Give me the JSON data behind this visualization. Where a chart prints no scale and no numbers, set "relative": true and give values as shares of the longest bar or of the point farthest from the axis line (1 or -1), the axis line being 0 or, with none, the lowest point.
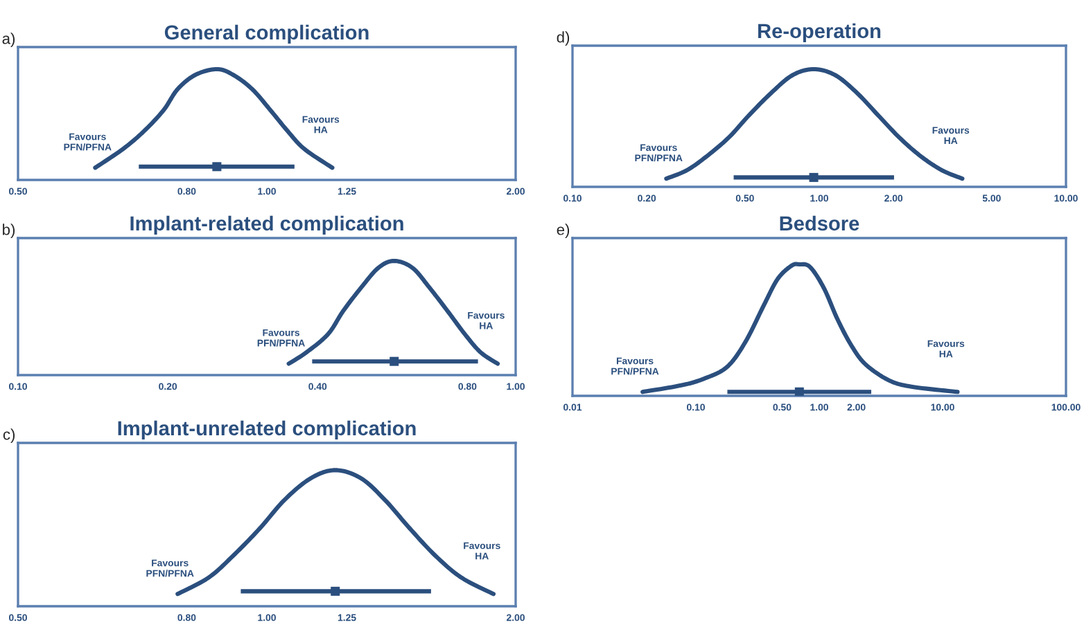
{
  "chart_data": [
    {
      "type": "line",
      "title": "General complication",
      "log": "x",
      "relative": true,
      "xlim": [
        0.5,
        2.0
      ],
      "xticks": [
        {
          "value": 0.5,
          "label": "0.50"
        },
        {
          "value": 0.8,
          "label": "0.80"
        },
        {
          "value": 1.0,
          "label": "1.00"
        },
        {
          "value": 1.25,
          "label": "1.25"
        },
        {
          "value": 2.0,
          "label": "2.00"
        }
      ],
      "annotations": [
        "a)",
        "Favours\nPFN/PFNA",
        "Favours\nHA"
      ],
      "series": [
        {
          "color": "#2b4f7e",
          "x": [
            0.62,
            0.67,
            0.71,
            0.75,
            0.78,
            0.82,
            0.87,
            0.91,
            0.96,
            1.01,
            1.06,
            1.11,
            1.2
          ],
          "values": [
            0.11,
            0.28,
            0.44,
            0.63,
            0.82,
            0.95,
            1,
            0.95,
            0.82,
            0.63,
            0.44,
            0.28,
            0.11
          ]
        },
        {
          "type": "scatter",
          "marker": "square",
          "color": "#2b4f7e",
          "x": [
            0.87
          ],
          "values": [
            0.12
          ],
          "xerrors": [
            [
              0.7,
              1.08
            ]
          ]
        }
      ]
    },
    {
      "type": "line",
      "title": "Implant-related complication",
      "log": "x",
      "relative": true,
      "xlim": [
        0.1,
        1.0
      ],
      "xticks": [
        {
          "value": 0.1,
          "label": "0.10"
        },
        {
          "value": 0.2,
          "label": "0.20"
        },
        {
          "value": 0.4,
          "label": "0.40"
        },
        {
          "value": 0.8,
          "label": "0.80"
        },
        {
          "value": 1.0,
          "label": "1.00"
        }
      ],
      "annotations": [
        "b)",
        "Favours\nPFN/PFNA",
        "Favours\nHA"
      ],
      "series": [
        {
          "color": "#2b4f7e",
          "x": [
            0.35,
            0.38,
            0.42,
            0.45,
            0.49,
            0.53,
            0.57,
            0.62,
            0.67,
            0.73,
            0.79,
            0.85,
            0.92
          ],
          "values": [
            0.1,
            0.2,
            0.36,
            0.56,
            0.77,
            0.94,
            1,
            0.94,
            0.77,
            0.56,
            0.36,
            0.2,
            0.1
          ]
        },
        {
          "type": "scatter",
          "marker": "square",
          "color": "#2b4f7e",
          "x": [
            0.57
          ],
          "values": [
            0.12
          ],
          "xerrors": [
            [
              0.39,
              0.84
            ]
          ]
        }
      ]
    },
    {
      "type": "line",
      "title": "Implant-unrelated complication",
      "log": "x",
      "relative": true,
      "xlim": [
        0.5,
        2.0
      ],
      "xticks": [
        {
          "value": 0.5,
          "label": "0.50"
        },
        {
          "value": 0.8,
          "label": "0.80"
        },
        {
          "value": 1.0,
          "label": "1.00"
        },
        {
          "value": 1.25,
          "label": "1.25"
        },
        {
          "value": 2.0,
          "label": "2.00"
        }
      ],
      "annotations": [
        "c)",
        "Favours\nPFN/PFNA",
        "Favours\nHA"
      ],
      "series": [
        {
          "color": "#2b4f7e",
          "x": [
            0.78,
            0.85,
            0.91,
            0.98,
            1.05,
            1.13,
            1.21,
            1.3,
            1.39,
            1.49,
            1.6,
            1.72,
            1.88
          ],
          "values": [
            0.09,
            0.21,
            0.37,
            0.57,
            0.78,
            0.94,
            1,
            0.94,
            0.78,
            0.57,
            0.37,
            0.21,
            0.09
          ]
        },
        {
          "type": "scatter",
          "marker": "square",
          "color": "#2b4f7e",
          "x": [
            1.21
          ],
          "values": [
            0.11
          ],
          "xerrors": [
            [
              0.93,
              1.58
            ]
          ]
        }
      ]
    },
    {
      "type": "line",
      "title": "Re-operation",
      "log": "x",
      "relative": true,
      "xlim": [
        0.1,
        10.0
      ],
      "xticks": [
        {
          "value": 0.1,
          "label": "0.10"
        },
        {
          "value": 0.2,
          "label": "0.20"
        },
        {
          "value": 0.5,
          "label": "0.50"
        },
        {
          "value": 1.0,
          "label": "1.00"
        },
        {
          "value": 2.0,
          "label": "2.00"
        },
        {
          "value": 5.0,
          "label": "5.00"
        },
        {
          "value": 10.0,
          "label": "10.00"
        }
      ],
      "annotations": [
        "d)",
        "Favours\nPFN/PFNA",
        "Favours\nHA"
      ],
      "series": [
        {
          "color": "#2b4f7e",
          "x": [
            0.24,
            0.29,
            0.35,
            0.43,
            0.52,
            0.64,
            0.78,
            0.95,
            1.16,
            1.42,
            1.73,
            2.11,
            2.58,
            3.15,
            3.8
          ],
          "values": [
            0.07,
            0.14,
            0.26,
            0.42,
            0.61,
            0.8,
            0.95,
            1,
            0.95,
            0.8,
            0.61,
            0.42,
            0.26,
            0.14,
            0.07
          ]
        },
        {
          "type": "scatter",
          "marker": "square",
          "color": "#2b4f7e",
          "x": [
            0.95
          ],
          "values": [
            0.08
          ],
          "xerrors": [
            [
              0.45,
              2.01
            ]
          ]
        }
      ]
    },
    {
      "type": "line",
      "title": "Bedsore",
      "log": "x",
      "relative": true,
      "xlim": [
        0.01,
        100.0
      ],
      "xticks": [
        {
          "value": 0.01,
          "label": "0.01"
        },
        {
          "value": 0.1,
          "label": "0.10"
        },
        {
          "value": 0.5,
          "label": "0.50"
        },
        {
          "value": 1.0,
          "label": "1.00"
        },
        {
          "value": 2.0,
          "label": "2.00"
        },
        {
          "value": 10.0,
          "label": "10.00"
        },
        {
          "value": 100.0,
          "label": "100.00"
        }
      ],
      "annotations": [
        "e)",
        "Favours\nPFN/PFNA",
        "Favours\nHA"
      ],
      "series": [
        {
          "color": "#2b4f7e",
          "x": [
            0.037,
            0.076,
            0.116,
            0.179,
            0.252,
            0.356,
            0.461,
            0.597,
            0.69,
            0.842,
            1.09,
            1.41,
            1.83,
            2.37,
            3.64,
            5.59,
            13.2
          ],
          "values": [
            0.03,
            0.08,
            0.13,
            0.22,
            0.41,
            0.69,
            0.89,
            0.99,
            1,
            0.98,
            0.82,
            0.58,
            0.38,
            0.24,
            0.12,
            0.07,
            0.03
          ]
        },
        {
          "type": "scatter",
          "marker": "square",
          "color": "#2b4f7e",
          "x": [
            0.69
          ],
          "values": [
            0.03
          ],
          "xerrors": [
            [
              0.18,
              2.64
            ]
          ]
        }
      ]
    }
  ]
}
